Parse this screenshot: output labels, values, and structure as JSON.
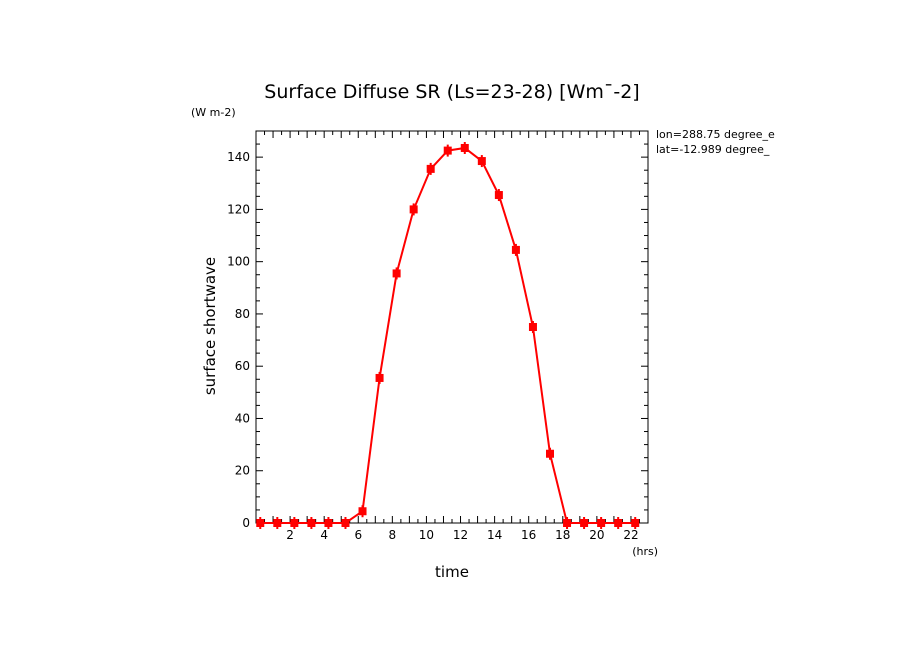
{
  "chart_data": {
    "type": "line",
    "title": "Surface Diffuse SR (Ls=23-28) [Wm¯-2]",
    "units_label": "(W m-2)",
    "xlabel": "time",
    "xunits": "(hrs)",
    "ylabel": "surface shortwave",
    "xlim": [
      0,
      23
    ],
    "ylim": [
      0,
      150
    ],
    "x_ticks": [
      2,
      4,
      6,
      8,
      10,
      12,
      14,
      16,
      18,
      20,
      22
    ],
    "y_ticks": [
      0,
      20,
      40,
      60,
      80,
      100,
      120,
      140
    ],
    "annotations": [
      "lon=288.75 degree_e",
      "lat=-12.989 degree_"
    ],
    "series": [
      {
        "name": "surface shortwave",
        "color": "#ff0000",
        "x": [
          0.25,
          1.25,
          2.25,
          3.25,
          4.25,
          5.25,
          6.25,
          7.25,
          8.25,
          9.25,
          10.25,
          11.25,
          12.25,
          13.25,
          14.25,
          15.25,
          16.25,
          17.25,
          18.25,
          19.25,
          20.25,
          21.25,
          22.25
        ],
        "values": [
          0,
          0,
          0,
          0,
          0,
          0,
          4.5,
          55.5,
          95.5,
          120,
          135.5,
          142.5,
          143.5,
          138.5,
          125.5,
          104.5,
          75,
          26.5,
          0,
          0,
          0,
          0,
          0
        ]
      }
    ]
  }
}
